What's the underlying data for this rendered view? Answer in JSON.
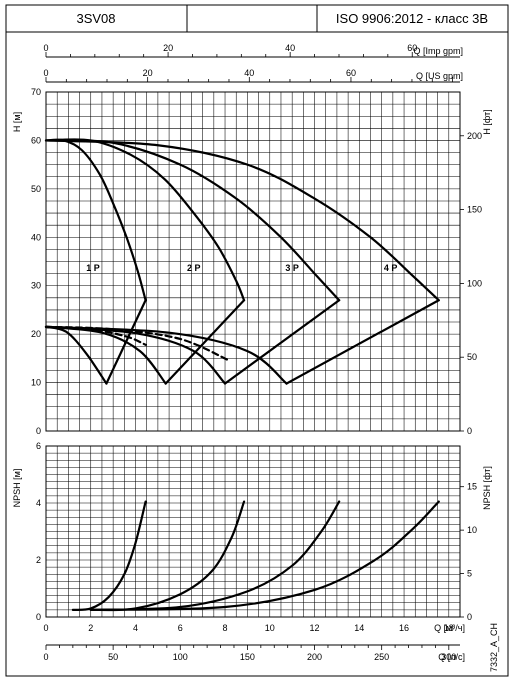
{
  "header": {
    "model": "3SV08",
    "middle": "",
    "standard": "ISO 9906:2012 - класс 3B"
  },
  "drawing_code": "7332_A_CH",
  "chart_data": [
    {
      "type": "line",
      "id": "head",
      "xlabel": "Q [м³/ч]",
      "xlim": [
        0,
        18.5
      ],
      "ylabel": "H [м]",
      "ylim": [
        0,
        70
      ],
      "yticks": [
        0,
        10,
        20,
        30,
        40,
        50,
        60,
        70
      ],
      "y2label": "H [фт]",
      "y2ticks": [
        0,
        50,
        100,
        150,
        200
      ],
      "top_axes": [
        {
          "label": "Q [Imp gpm]",
          "ticks": [
            0,
            20,
            40,
            60
          ]
        },
        {
          "label": "Q [US gpm]",
          "ticks": [
            0,
            20,
            40,
            60
          ]
        }
      ],
      "grid": true,
      "series": [
        {
          "name": "1 P",
          "label_at": [
            2.1,
            33
          ],
          "x": [
            0,
            0.8,
            1.6,
            2.4,
            3.0,
            3.6,
            4.1,
            4.45
          ],
          "y": [
            60,
            60,
            58,
            53,
            47,
            40,
            33,
            27
          ]
        },
        {
          "name": "2 P",
          "label_at": [
            6.6,
            33
          ],
          "x": [
            0,
            2,
            3.8,
            5.3,
            6.6,
            7.7,
            8.5,
            8.85
          ],
          "y": [
            60,
            60,
            57,
            52,
            45,
            38,
            31,
            27
          ]
        },
        {
          "name": "3 P",
          "label_at": [
            11.0,
            33
          ],
          "x": [
            0,
            3,
            6,
            8.5,
            10.5,
            12.1,
            13.1
          ],
          "y": [
            60,
            59.5,
            55,
            48,
            40,
            32,
            27
          ]
        },
        {
          "name": "4 P",
          "label_at": [
            15.4,
            33
          ],
          "x": [
            0,
            5,
            9,
            12,
            14.5,
            16.4,
            17.55
          ],
          "y": [
            60,
            59,
            55,
            48,
            40,
            32,
            27
          ]
        }
      ],
      "operating_envelope": {
        "lower_boundary": {
          "x": [
            2.7,
            5.35,
            8.0,
            10.75
          ],
          "y": [
            9.8,
            9.8,
            9.8,
            9.8
          ]
        },
        "left_branches": [
          {
            "x": [
              0,
              0.9,
              1.8,
              2.7
            ],
            "y": [
              21.5,
              20.5,
              16,
              9.8
            ]
          },
          {
            "x": [
              0,
              2.5,
              4.2,
              5.35
            ],
            "y": [
              21.5,
              20.3,
              16.5,
              9.8
            ]
          },
          {
            "x": [
              0,
              4,
              6.6,
              8.0
            ],
            "y": [
              21.5,
              20.2,
              16.5,
              9.8
            ]
          },
          {
            "x": [
              0,
              5.5,
              9.0,
              10.75
            ],
            "y": [
              21.5,
              20.3,
              16.5,
              9.8
            ]
          }
        ],
        "right_branches": [
          {
            "x": [
              2.7,
              4.45
            ],
            "y": [
              9.8,
              27
            ]
          },
          {
            "x": [
              5.35,
              8.85
            ],
            "y": [
              9.8,
              27
            ]
          },
          {
            "x": [
              8.0,
              13.1
            ],
            "y": [
              9.8,
              27
            ]
          },
          {
            "x": [
              10.75,
              17.55
            ],
            "y": [
              9.8,
              27
            ]
          }
        ],
        "dashed": [
          {
            "x": [
              0,
              2.0,
              3.6,
              4.45
            ],
            "y": [
              21.5,
              21.0,
              19.5,
              17.8
            ]
          },
          {
            "x": [
              0,
              3.0,
              6.0,
              8.2
            ],
            "y": [
              21.5,
              21.0,
              19.0,
              14.5
            ]
          }
        ]
      }
    },
    {
      "type": "line",
      "id": "npsh",
      "xlabel": "Q [м³/ч]",
      "xticks": [
        0,
        2,
        4,
        6,
        8,
        10,
        12,
        14,
        16,
        18
      ],
      "xlim": [
        0,
        18.5
      ],
      "x2label": "Q [л/с]",
      "x2ticks": [
        0,
        50,
        100,
        150,
        200,
        250,
        300
      ],
      "ylabel": "NPSH [м]",
      "ylim": [
        0,
        6
      ],
      "yticks": [
        0,
        2,
        4,
        6
      ],
      "y2label": "NPSH [фт]",
      "y2ticks": [
        0,
        5,
        10,
        15
      ],
      "grid": true,
      "series": [
        {
          "x": [
            1.2,
            2.0,
            2.8,
            3.5,
            4.0,
            4.45
          ],
          "y": [
            0.25,
            0.3,
            0.7,
            1.5,
            2.6,
            4.05
          ]
        },
        {
          "x": [
            2.0,
            4.0,
            6.0,
            7.4,
            8.3,
            8.85
          ],
          "y": [
            0.25,
            0.3,
            0.8,
            1.6,
            2.8,
            4.05
          ]
        },
        {
          "x": [
            2.0,
            6.0,
            9.0,
            11.0,
            12.3,
            13.1
          ],
          "y": [
            0.25,
            0.35,
            0.9,
            1.8,
            3.0,
            4.05
          ]
        },
        {
          "x": [
            2.0,
            8.0,
            12.0,
            14.7,
            16.4,
            17.55
          ],
          "y": [
            0.25,
            0.35,
            0.95,
            2.0,
            3.1,
            4.05
          ]
        }
      ]
    }
  ]
}
